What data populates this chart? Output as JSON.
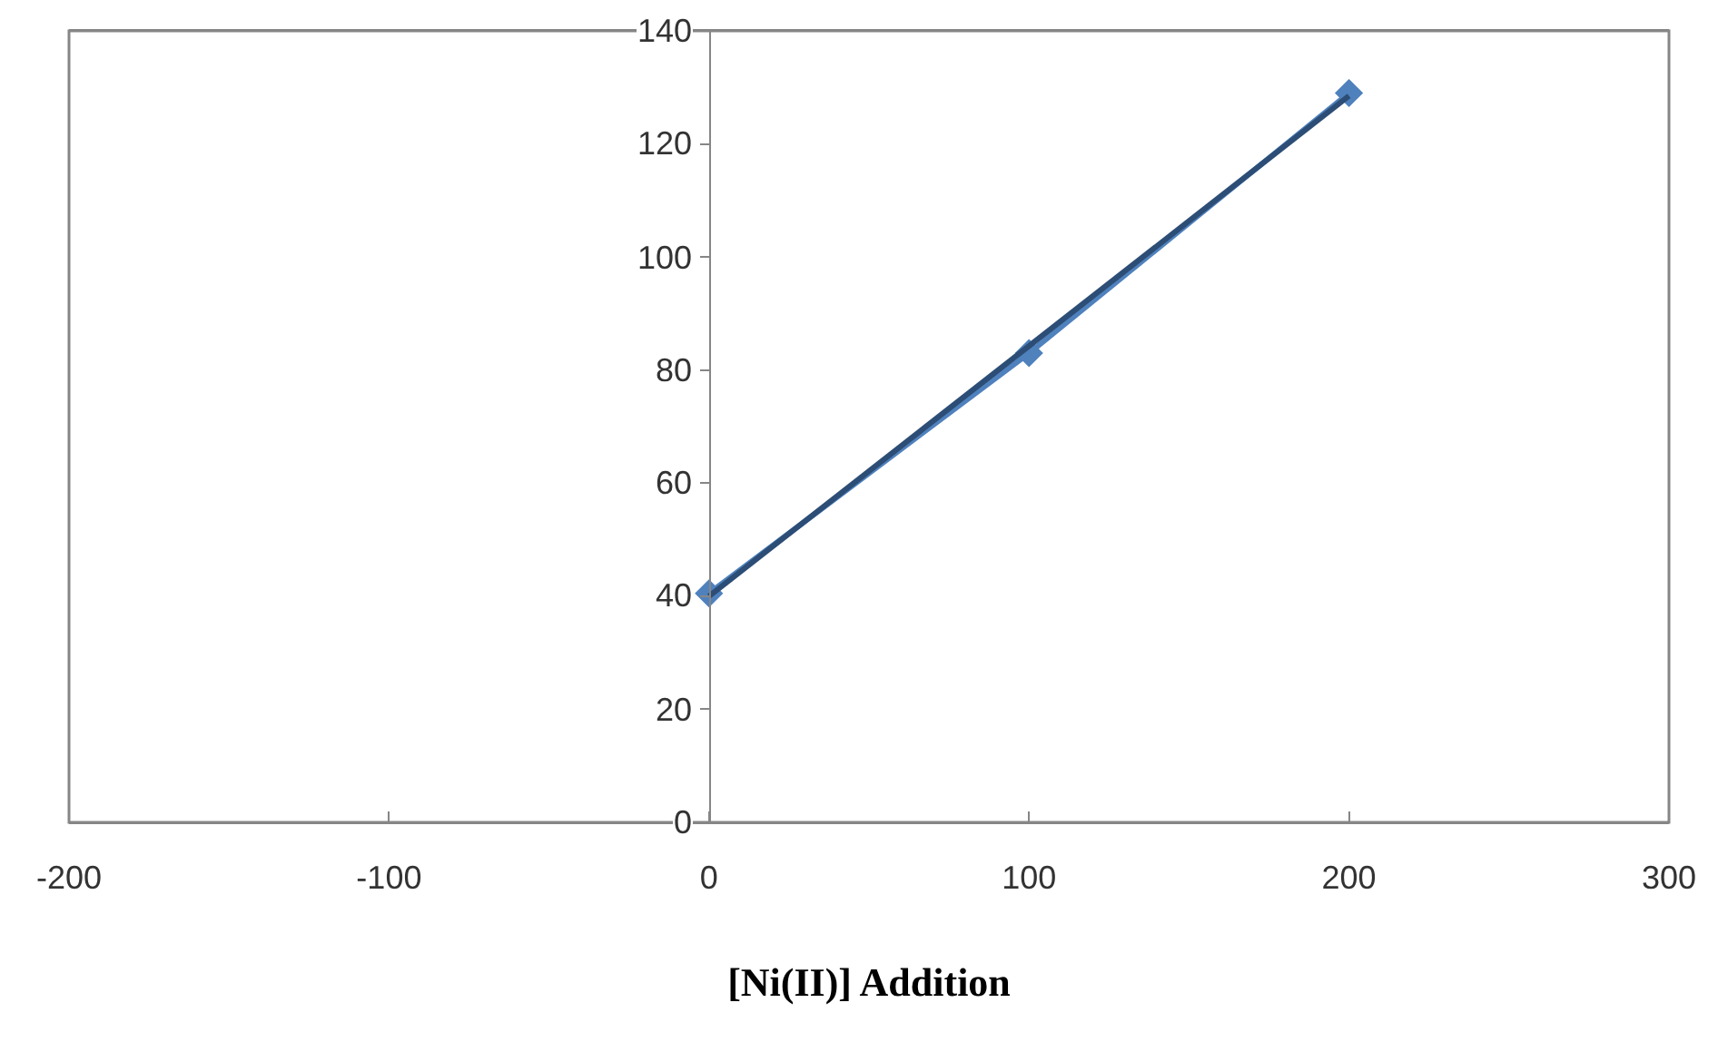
{
  "chart_data": {
    "type": "line",
    "xlabel": "[Ni(II)] Addition",
    "series": [
      {
        "color": "#4f81bd",
        "values": [
          40.5,
          83,
          129
        ],
        "marker": "diamond",
        "x": [
          0,
          100,
          200
        ]
      },
      {
        "color": "#2c4d75",
        "values": [
          40,
          128.5
        ],
        "marker": "none",
        "x": [
          0,
          200
        ]
      }
    ],
    "xlim": [
      -200,
      300
    ],
    "xticks": [
      -200,
      -100,
      0,
      100,
      200,
      300
    ],
    "ylim": [
      0,
      140
    ],
    "yticks": [
      0,
      20,
      40,
      60,
      80,
      100,
      120,
      140
    ],
    "legend": false
  }
}
